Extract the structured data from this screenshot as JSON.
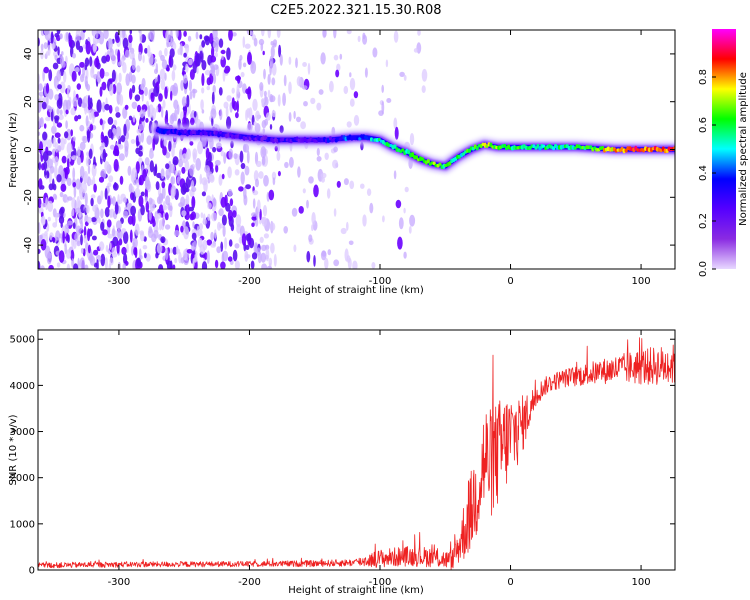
{
  "title": "C2E5.2022.321.15.30.R08",
  "chart_data": [
    {
      "type": "heatmap",
      "xlabel": "Height of straight line (km)",
      "ylabel": "Frequency (Hz)",
      "xlim": [
        -362,
        126
      ],
      "ylim": [
        -50,
        50
      ],
      "xticks": [
        -300,
        -200,
        -100,
        0,
        100
      ],
      "yticks": [
        -40,
        -20,
        0,
        20,
        40
      ],
      "colorbar": {
        "label": "Normalized spectral amplitude",
        "range": [
          0.0,
          1.0
        ],
        "ticks": [
          0.0,
          0.2,
          0.4,
          0.6,
          0.8
        ],
        "tick_labels": [
          "0.0",
          "0.2",
          "0.4",
          "0.6",
          "0.8"
        ],
        "colormap": [
          "#e8d8ff",
          "#8a2be2",
          "#5500ff",
          "#0000ff",
          "#00ffff",
          "#00ff00",
          "#ffff00",
          "#ff0000",
          "#ff00ff"
        ]
      },
      "ridge": {
        "x": [
          -270,
          -250,
          -230,
          -200,
          -180,
          -160,
          -140,
          -120,
          -110,
          -100,
          -90,
          -80,
          -70,
          -60,
          -50,
          -40,
          -30,
          -20,
          -10,
          0,
          20,
          50,
          80,
          100,
          126
        ],
        "y": [
          8,
          7,
          7,
          5,
          4,
          4,
          4,
          5,
          5,
          4,
          1,
          -1,
          -4,
          -6,
          -7,
          -3,
          0,
          2,
          1,
          1,
          1,
          1,
          0,
          0,
          0
        ],
        "amplitude": [
          0.35,
          0.3,
          0.25,
          0.25,
          0.25,
          0.25,
          0.3,
          0.4,
          0.45,
          0.5,
          0.55,
          0.55,
          0.6,
          0.65,
          0.6,
          0.55,
          0.6,
          0.7,
          0.65,
          0.6,
          0.55,
          0.55,
          0.8,
          0.85,
          0.85
        ]
      },
      "noise_extent_x": [
        -362,
        -60
      ]
    },
    {
      "type": "line",
      "xlabel": "Height of straight line (km)",
      "ylabel": "SNR (10 * v/v)",
      "xlim": [
        -362,
        126
      ],
      "ylim": [
        0,
        5200
      ],
      "xticks": [
        -300,
        -200,
        -100,
        0,
        100
      ],
      "yticks": [
        0,
        1000,
        2000,
        3000,
        4000,
        5000
      ],
      "series": [
        {
          "color": "#ee2222",
          "x": [
            -362,
            -300,
            -200,
            -150,
            -120,
            -100,
            -80,
            -60,
            -45,
            -40,
            -35,
            -30,
            -25,
            -20,
            -15,
            -10,
            -5,
            0,
            5,
            10,
            15,
            20,
            25,
            30,
            40,
            60,
            80,
            100,
            126
          ],
          "y": [
            100,
            120,
            130,
            140,
            160,
            250,
            300,
            280,
            200,
            500,
            900,
            1300,
            1800,
            2400,
            2300,
            2500,
            2700,
            2900,
            3000,
            3200,
            3500,
            3800,
            3950,
            4050,
            4150,
            4250,
            4350,
            4400,
            4450
          ],
          "spread": [
            60,
            60,
            60,
            70,
            80,
            200,
            220,
            220,
            200,
            400,
            700,
            900,
            1100,
            1300,
            1200,
            1200,
            1100,
            1000,
            800,
            600,
            400,
            250,
            200,
            200,
            200,
            250,
            300,
            400,
            450
          ]
        }
      ]
    }
  ]
}
